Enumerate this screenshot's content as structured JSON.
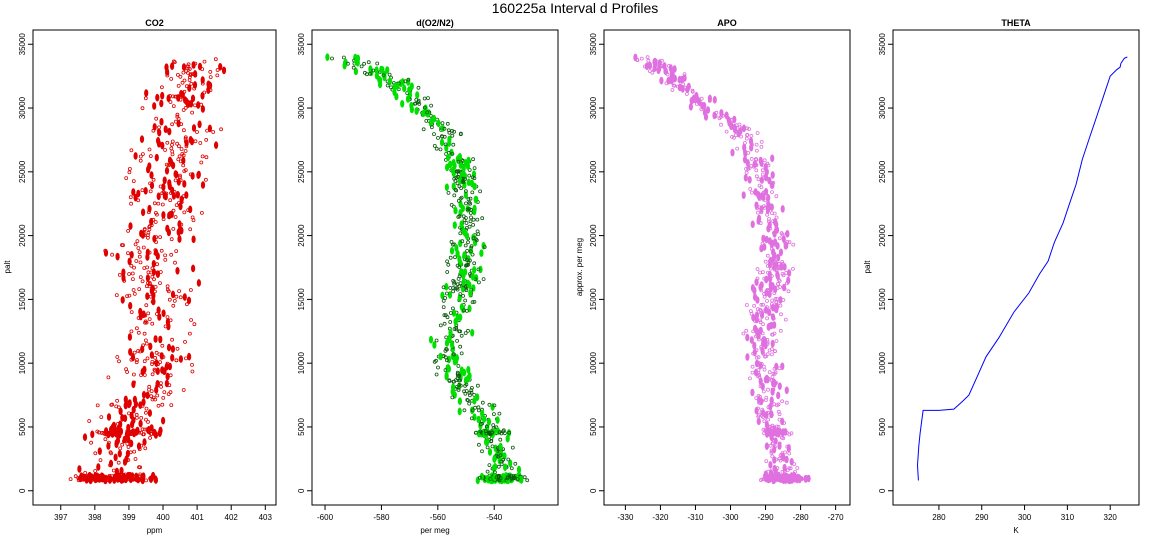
{
  "figure": {
    "title": "160225a   Interval d Profiles"
  },
  "chart_data": [
    {
      "type": "scatter",
      "title": "CO2",
      "xlabel": "ppm",
      "ylabel": "palt",
      "xlim": [
        396.4,
        403.1
      ],
      "ylim": [
        0,
        35000
      ],
      "xticks": [
        397,
        398,
        399,
        400,
        401,
        402,
        403
      ],
      "yticks": [
        0,
        5000,
        10000,
        15000,
        20000,
        25000,
        30000,
        35000
      ],
      "color": "#e00000",
      "series": [
        {
          "name": "CO2",
          "profile": {
            "y": [
              1000,
              2000,
              4500,
              6000,
              8000,
              10000,
              12000,
              15000,
              18000,
              20000,
              22000,
              25000,
              28000,
              30000,
              32000,
              34000
            ],
            "x": [
              398.4,
              398.7,
              398.9,
              399.0,
              399.6,
              399.7,
              399.8,
              399.8,
              399.6,
              399.7,
              400.1,
              400.1,
              400.5,
              400.5,
              400.8,
              400.8
            ]
          },
          "spread": 0.9
        }
      ]
    },
    {
      "type": "scatter",
      "title": "d(O2/N2)",
      "xlabel": "per meg",
      "ylabel": "",
      "xlim": [
        -602,
        -520
      ],
      "ylim": [
        0,
        35000
      ],
      "xticks": [
        -600,
        -580,
        -560,
        -540
      ],
      "yticks": [
        0,
        5000,
        10000,
        15000,
        20000,
        25000,
        30000,
        35000
      ],
      "color": "#00e000",
      "series": [
        {
          "name": "d(O2/N2)",
          "profile": {
            "y": [
              1000,
              2500,
              4500,
              6000,
              8000,
              10000,
              12000,
              15000,
              18000,
              20000,
              22000,
              25000,
              28000,
              30000,
              32000,
              34000
            ],
            "x": [
              -537,
              -538,
              -541,
              -545,
              -550,
              -557,
              -555,
              -552,
              -550,
              -550,
              -548,
              -552,
              -557,
              -565,
              -575,
              -593
            ]
          },
          "spread": 5
        }
      ]
    },
    {
      "type": "scatter",
      "title": "APO",
      "xlabel": "",
      "ylabel": "approx. per meg",
      "xlim": [
        -334,
        -268
      ],
      "ylim": [
        0,
        35000
      ],
      "xticks": [
        -330,
        -320,
        -310,
        -300,
        -290,
        -280,
        -270
      ],
      "yticks": [
        0,
        5000,
        10000,
        15000,
        20000,
        25000,
        30000,
        35000
      ],
      "color": "#e070e0",
      "series": [
        {
          "name": "APO",
          "profile": {
            "y": [
              1000,
              2500,
              4500,
              6000,
              8000,
              10000,
              12000,
              15000,
              18000,
              20000,
              22000,
              25000,
              28000,
              30000,
              32000,
              34000
            ],
            "x": [
              -285,
              -286,
              -287,
              -290,
              -289,
              -291,
              -290,
              -289,
              -287,
              -287,
              -290,
              -292,
              -296,
              -306,
              -315,
              -325
            ]
          },
          "spread": 4
        }
      ]
    },
    {
      "type": "line",
      "title": "THETA",
      "xlabel": "K",
      "ylabel": "palt",
      "xlim": [
        271,
        325
      ],
      "ylim": [
        0,
        35000
      ],
      "xticks": [
        280,
        290,
        300,
        310,
        320
      ],
      "yticks": [
        0,
        5000,
        10000,
        15000,
        20000,
        25000,
        30000,
        35000
      ],
      "color": "#0000ff",
      "series": [
        {
          "name": "THETA",
          "x": [
            275.2,
            275.0,
            275.3,
            275.6,
            276.3,
            280.0,
            283.5,
            285.5,
            287.0,
            289.0,
            291.0,
            294.0,
            297.5,
            301.0,
            303.5,
            305.5,
            307.0,
            309.0,
            310.5,
            312.0,
            313.5,
            315.0,
            317.0,
            318.5,
            320.0,
            321.5,
            322.3,
            322.5,
            323.3,
            324.0
          ],
          "y": [
            800,
            2000,
            3500,
            4500,
            6300,
            6300,
            6400,
            7000,
            7500,
            9000,
            10500,
            12000,
            14000,
            15500,
            17000,
            18000,
            19500,
            21000,
            22500,
            24000,
            26000,
            27500,
            29500,
            31000,
            32500,
            33000,
            33200,
            33500,
            33900,
            34000
          ]
        }
      ]
    }
  ]
}
